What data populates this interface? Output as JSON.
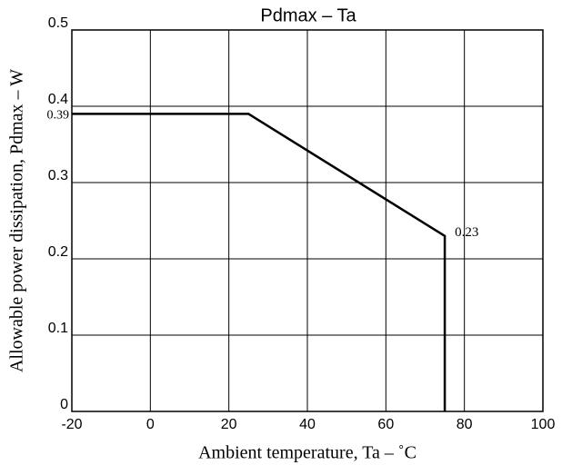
{
  "chart_data": {
    "type": "line",
    "title": "Pdmax – Ta",
    "x_label": "Ambient temperature, Ta – ˚C",
    "y_label": "Allowable power dissipation, Pdmax – W",
    "series": [
      {
        "name": "Pdmax",
        "color": "#000000",
        "x": [
          -20,
          25,
          75,
          75
        ],
        "values": [
          0.39,
          0.39,
          0.23,
          0
        ]
      }
    ],
    "xlim": [
      -20,
      100
    ],
    "ylim": [
      0,
      0.5
    ],
    "xticks": [
      -20,
      0,
      20,
      40,
      60,
      80,
      100
    ],
    "yticks": [
      0,
      0.1,
      0.2,
      0.3,
      0.4,
      0.5
    ],
    "grid": true
  }
}
